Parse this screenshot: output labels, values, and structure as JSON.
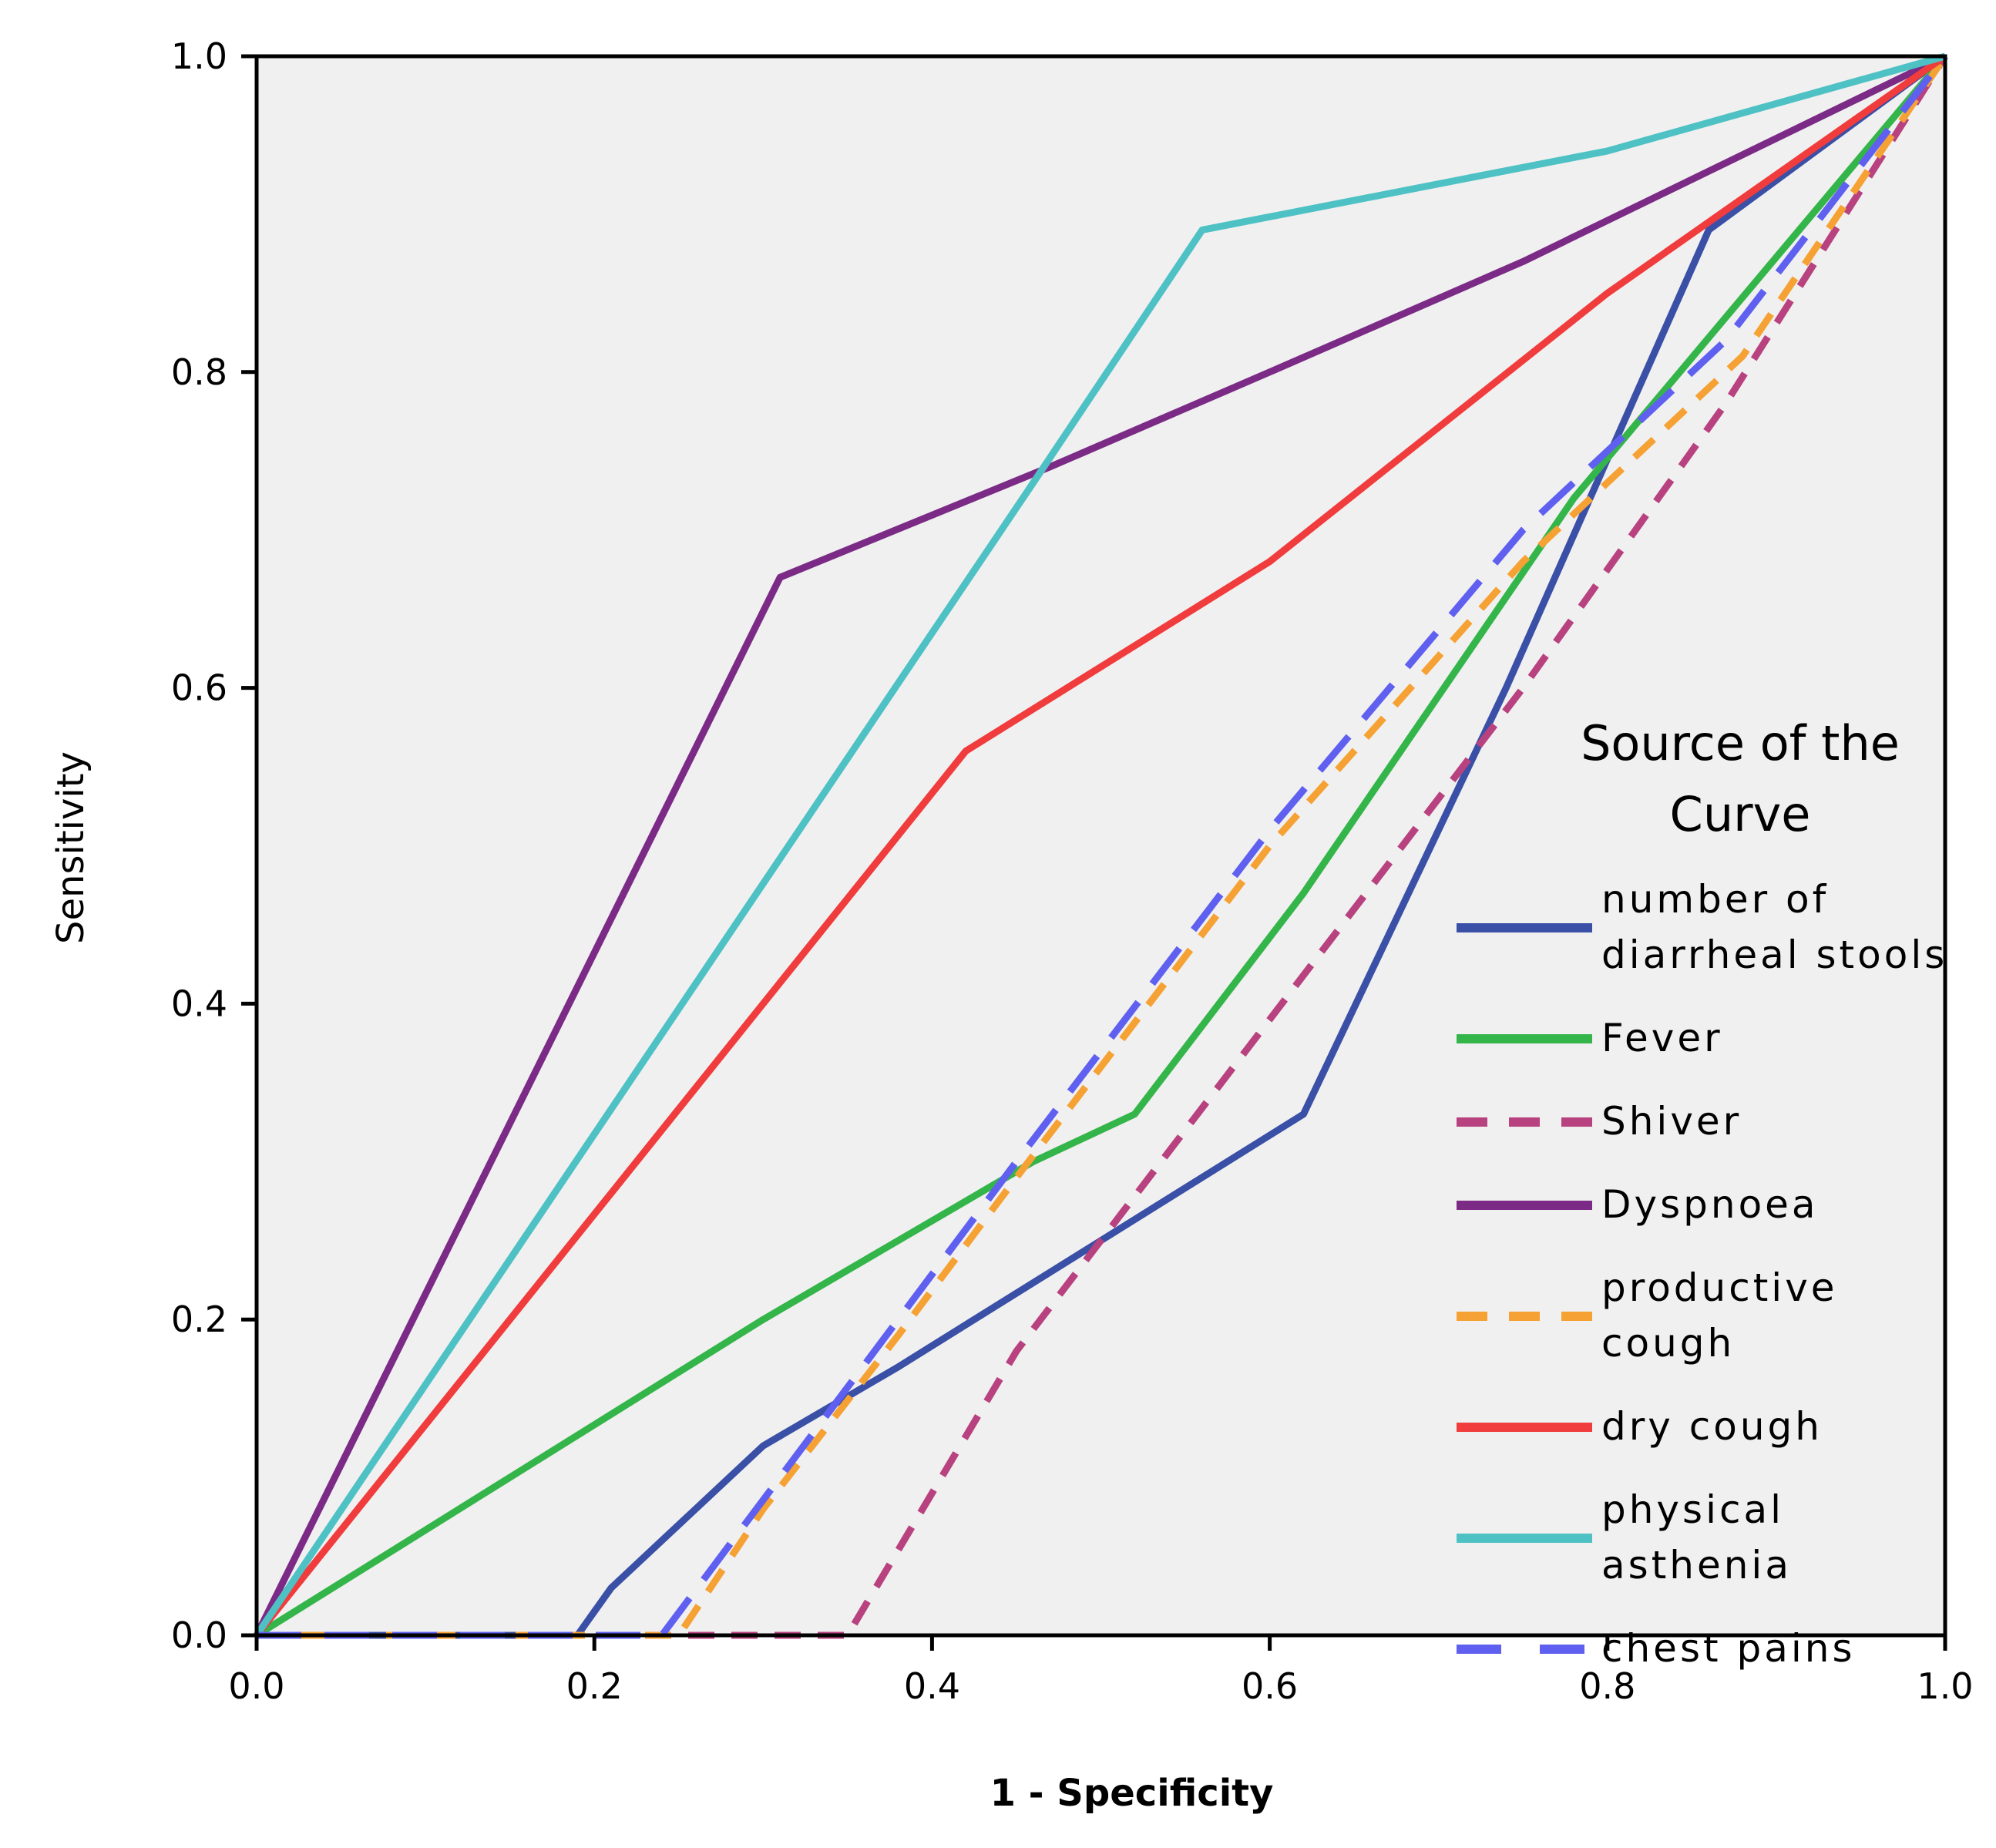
{
  "chart_data": {
    "type": "line",
    "title": "",
    "xlabel": "1 - Specificity",
    "ylabel": "Sensitivity",
    "xlim": [
      0.0,
      1.0
    ],
    "ylim": [
      0.0,
      1.0
    ],
    "x_ticks": [
      "0.0",
      "0.2",
      "0.4",
      "0.6",
      "0.8",
      "1.0"
    ],
    "y_ticks": [
      "0.0",
      "0.2",
      "0.4",
      "0.6",
      "0.8",
      "1.0"
    ],
    "grid": false,
    "plot_background": "#f0f0f0",
    "legend": {
      "position": "right",
      "title_lines": [
        "Source of the",
        "Curve"
      ]
    },
    "series": [
      {
        "name_lines": [
          "number of",
          "diarrheal stools"
        ],
        "color": "#3a4fa6",
        "dash": "solid",
        "points": [
          [
            0.0,
            0.0
          ],
          [
            0.19,
            0.0
          ],
          [
            0.21,
            0.03
          ],
          [
            0.24,
            0.06
          ],
          [
            0.3,
            0.12
          ],
          [
            0.38,
            0.17
          ],
          [
            0.5,
            0.25
          ],
          [
            0.62,
            0.33
          ],
          [
            0.74,
            0.6
          ],
          [
            0.86,
            0.89
          ],
          [
            1.0,
            1.0
          ]
        ]
      },
      {
        "name_lines": [
          "Fever"
        ],
        "color": "#34b54a",
        "dash": "solid",
        "points": [
          [
            0.0,
            0.0
          ],
          [
            0.3,
            0.2
          ],
          [
            0.46,
            0.3
          ],
          [
            0.52,
            0.33
          ],
          [
            0.62,
            0.47
          ],
          [
            0.78,
            0.72
          ],
          [
            1.0,
            1.0
          ]
        ]
      },
      {
        "name_lines": [
          "Shiver"
        ],
        "color": "#b8427f",
        "dash": "dashed",
        "points": [
          [
            0.0,
            0.0
          ],
          [
            0.35,
            0.0
          ],
          [
            0.45,
            0.18
          ],
          [
            0.6,
            0.39
          ],
          [
            0.75,
            0.6
          ],
          [
            0.87,
            0.78
          ],
          [
            1.0,
            1.0
          ]
        ]
      },
      {
        "name_lines": [
          "Dyspnoea"
        ],
        "color": "#7b2a86",
        "dash": "solid",
        "points": [
          [
            0.0,
            0.0
          ],
          [
            0.31,
            0.67
          ],
          [
            0.47,
            0.74
          ],
          [
            0.6,
            0.8
          ],
          [
            0.75,
            0.87
          ],
          [
            1.0,
            1.0
          ]
        ]
      },
      {
        "name_lines": [
          "productive",
          "cough"
        ],
        "color": "#f5a133",
        "dash": "dashed",
        "points": [
          [
            0.0,
            0.0
          ],
          [
            0.25,
            0.0
          ],
          [
            0.3,
            0.08
          ],
          [
            0.38,
            0.19
          ],
          [
            0.45,
            0.29
          ],
          [
            0.6,
            0.5
          ],
          [
            0.75,
            0.68
          ],
          [
            0.88,
            0.81
          ],
          [
            1.0,
            1.0
          ]
        ]
      },
      {
        "name_lines": [
          "dry cough"
        ],
        "color": "#f03c3c",
        "dash": "solid",
        "points": [
          [
            0.0,
            0.0
          ],
          [
            0.42,
            0.56
          ],
          [
            0.6,
            0.68
          ],
          [
            0.8,
            0.85
          ],
          [
            1.0,
            1.0
          ]
        ]
      },
      {
        "name_lines": [
          "physical",
          "asthenia"
        ],
        "color": "#4ec1c4",
        "dash": "solid",
        "points": [
          [
            0.0,
            0.0
          ],
          [
            0.46,
            0.73
          ],
          [
            0.56,
            0.89
          ],
          [
            0.8,
            0.94
          ],
          [
            1.0,
            1.0
          ]
        ]
      },
      {
        "name_lines": [
          "chest pains"
        ],
        "color": "#6060f0",
        "dash": "longdash",
        "points": [
          [
            0.0,
            0.0
          ],
          [
            0.24,
            0.0
          ],
          [
            0.31,
            0.1
          ],
          [
            0.38,
            0.2
          ],
          [
            0.45,
            0.3
          ],
          [
            0.6,
            0.51
          ],
          [
            0.75,
            0.7
          ],
          [
            0.87,
            0.82
          ],
          [
            1.0,
            1.0
          ]
        ]
      }
    ]
  }
}
